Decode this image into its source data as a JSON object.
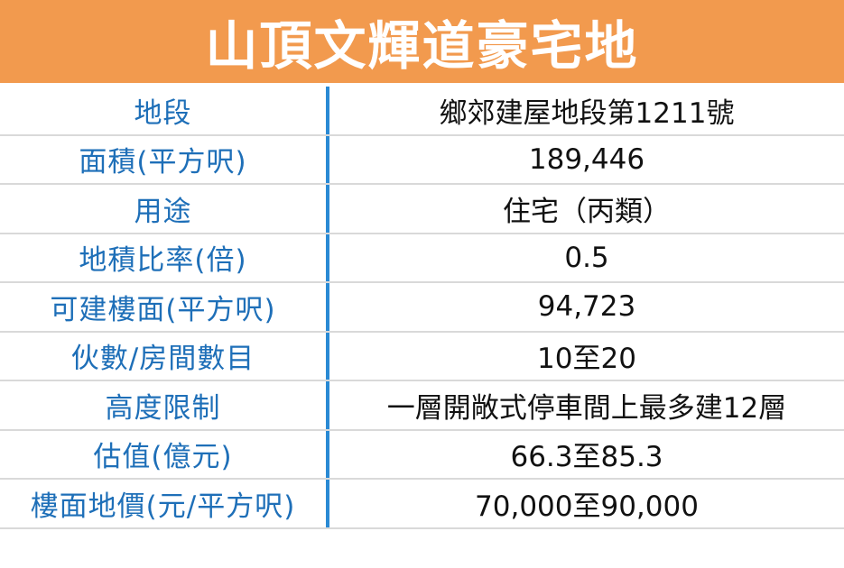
{
  "header": {
    "title": "山頂文輝道豪宅地"
  },
  "table": {
    "rows": [
      [
        "地段",
        "鄉郊建屋地段第1211號"
      ],
      [
        "面積(平方呎)",
        "189,446"
      ],
      [
        "用途",
        "住宅（丙類）"
      ],
      [
        "地積比率(倍)",
        "0.5"
      ],
      [
        "可建樓面(平方呎)",
        "94,723"
      ],
      [
        "伙數/房間數目",
        "10至20"
      ],
      [
        "高度限制",
        "一層開敞式停車間上最多建12層"
      ],
      [
        "估值(億元)",
        "66.3至85.3"
      ],
      [
        "樓面地價(元/平方呎)",
        "70,000至90,000"
      ]
    ]
  }
}
